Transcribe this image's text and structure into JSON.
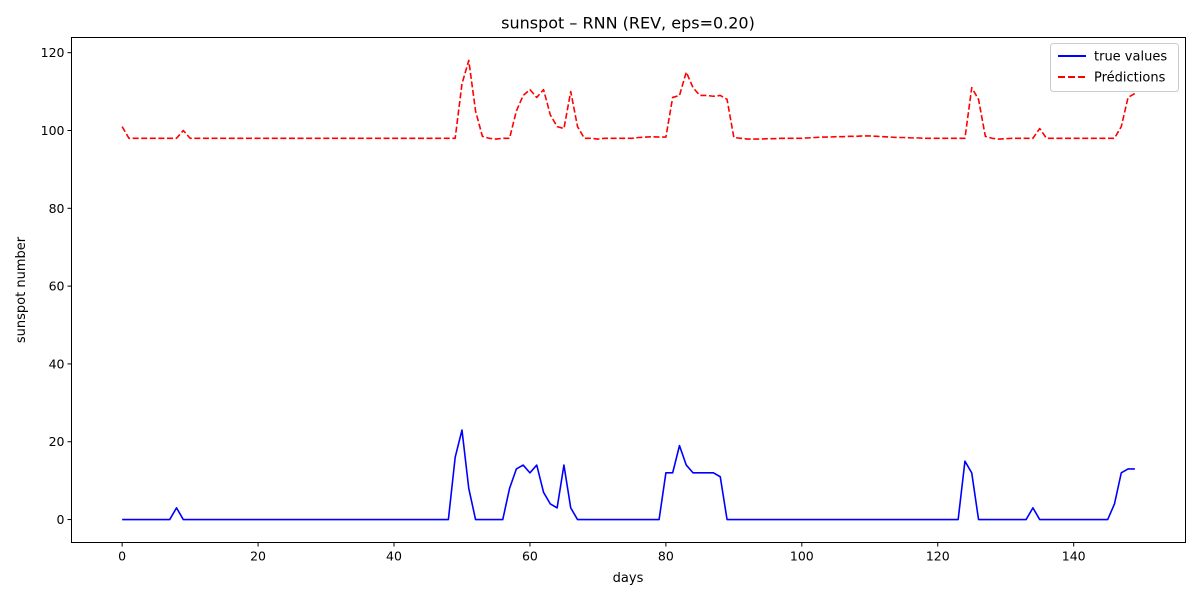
{
  "chart_data": {
    "type": "line",
    "title": "sunspot – RNN (REV, eps=0.20)",
    "xlabel": "days",
    "ylabel": "sunspot number",
    "xlim": [
      -7.45,
      156.45
    ],
    "ylim": [
      -5.9,
      123.9
    ],
    "xticks": [
      0,
      20,
      40,
      60,
      80,
      100,
      120,
      140
    ],
    "yticks": [
      0,
      20,
      40,
      60,
      80,
      100,
      120
    ],
    "grid": false,
    "legend_position": "top-right",
    "colors": {
      "true_values": "#0000ff",
      "predictions": "#ff0000"
    },
    "series": [
      {
        "name": "true values",
        "style": "solid",
        "color": "#0000ff",
        "x": [
          0,
          1,
          2,
          3,
          4,
          5,
          6,
          7,
          8,
          9,
          10,
          11,
          12,
          13,
          14,
          15,
          16,
          17,
          18,
          19,
          20,
          21,
          22,
          23,
          24,
          25,
          26,
          27,
          28,
          29,
          30,
          31,
          32,
          33,
          34,
          35,
          36,
          37,
          38,
          39,
          40,
          41,
          42,
          43,
          44,
          45,
          46,
          47,
          48,
          49,
          50,
          51,
          52,
          53,
          54,
          55,
          56,
          57,
          58,
          59,
          60,
          61,
          62,
          63,
          64,
          65,
          66,
          67,
          68,
          69,
          70,
          71,
          72,
          73,
          74,
          75,
          76,
          77,
          78,
          79,
          80,
          81,
          82,
          83,
          84,
          85,
          86,
          87,
          88,
          89,
          90,
          91,
          92,
          93,
          94,
          95,
          96,
          97,
          98,
          99,
          100,
          101,
          102,
          103,
          104,
          105,
          106,
          107,
          108,
          109,
          110,
          111,
          112,
          113,
          114,
          115,
          116,
          117,
          118,
          119,
          120,
          121,
          122,
          123,
          124,
          125,
          126,
          127,
          128,
          129,
          130,
          131,
          132,
          133,
          134,
          135,
          136,
          137,
          138,
          139,
          140,
          141,
          142,
          143,
          144,
          145,
          146,
          147,
          148,
          149
        ],
        "values": [
          0,
          0,
          0,
          0,
          0,
          0,
          0,
          0,
          3,
          0,
          0,
          0,
          0,
          0,
          0,
          0,
          0,
          0,
          0,
          0,
          0,
          0,
          0,
          0,
          0,
          0,
          0,
          0,
          0,
          0,
          0,
          0,
          0,
          0,
          0,
          0,
          0,
          0,
          0,
          0,
          0,
          0,
          0,
          0,
          0,
          0,
          0,
          0,
          0,
          16,
          23,
          8,
          0,
          0,
          0,
          0,
          0,
          8,
          13,
          14,
          12,
          14,
          7,
          4,
          3,
          14,
          3,
          0,
          0,
          0,
          0,
          0,
          0,
          0,
          0,
          0,
          0,
          0,
          0,
          0,
          12,
          12,
          19,
          14,
          12,
          12,
          12,
          12,
          11,
          0,
          0,
          0,
          0,
          0,
          0,
          0,
          0,
          0,
          0,
          0,
          0,
          0,
          0,
          0,
          0,
          0,
          0,
          0,
          0,
          0,
          0,
          0,
          0,
          0,
          0,
          0,
          0,
          0,
          0,
          0,
          0,
          0,
          0,
          0,
          15,
          12,
          0,
          0,
          0,
          0,
          0,
          0,
          0,
          0,
          3,
          0,
          0,
          0,
          0,
          0,
          0,
          0,
          0,
          0,
          0,
          0,
          4,
          12,
          13,
          13
        ]
      },
      {
        "name": "Prédictions",
        "style": "dashed",
        "color": "#ff0000",
        "x": [
          0,
          1,
          2,
          3,
          4,
          5,
          6,
          7,
          8,
          9,
          10,
          11,
          12,
          13,
          14,
          15,
          16,
          17,
          18,
          19,
          20,
          21,
          22,
          23,
          24,
          25,
          26,
          27,
          28,
          29,
          30,
          31,
          32,
          33,
          34,
          35,
          36,
          37,
          38,
          39,
          40,
          41,
          42,
          43,
          44,
          45,
          46,
          47,
          48,
          49,
          50,
          51,
          52,
          53,
          54,
          55,
          56,
          57,
          58,
          59,
          60,
          61,
          62,
          63,
          64,
          65,
          66,
          67,
          68,
          69,
          70,
          71,
          72,
          73,
          74,
          75,
          76,
          77,
          78,
          79,
          80,
          81,
          82,
          83,
          84,
          85,
          86,
          87,
          88,
          89,
          90,
          91,
          92,
          93,
          94,
          95,
          96,
          97,
          98,
          99,
          100,
          101,
          102,
          103,
          104,
          105,
          106,
          107,
          108,
          109,
          110,
          111,
          112,
          113,
          114,
          115,
          116,
          117,
          118,
          119,
          120,
          121,
          122,
          123,
          124,
          125,
          126,
          127,
          128,
          129,
          130,
          131,
          132,
          133,
          134,
          135,
          136,
          137,
          138,
          139,
          140,
          141,
          142,
          143,
          144,
          145,
          146,
          147,
          148,
          149
        ],
        "values": [
          101,
          98,
          98,
          98,
          98,
          98,
          98,
          98,
          98,
          100,
          98,
          98,
          98,
          98,
          98,
          98,
          98,
          98,
          98,
          98,
          98,
          98,
          98,
          98,
          98,
          98,
          98,
          98,
          98,
          98,
          98,
          98,
          98,
          98,
          98,
          98,
          98,
          98,
          98,
          98,
          98,
          98,
          98,
          98,
          98,
          98,
          98,
          98,
          98,
          98,
          112,
          118,
          105,
          98.5,
          98,
          97.8,
          98,
          98,
          105,
          109,
          110.5,
          108.5,
          110.5,
          104,
          101,
          100.5,
          110,
          101,
          98,
          98,
          97.8,
          98,
          98,
          98,
          98,
          98,
          98.2,
          98.3,
          98.4,
          98.3,
          98.3,
          108.5,
          109,
          115,
          111,
          109,
          109,
          108.8,
          109,
          108,
          98.2,
          98,
          97.8,
          97.8,
          97.8,
          97.9,
          97.9,
          98,
          98,
          98,
          98,
          98.1,
          98.2,
          98.3,
          98.3,
          98.4,
          98.4,
          98.5,
          98.5,
          98.6,
          98.6,
          98.5,
          98.4,
          98.3,
          98.2,
          98.2,
          98.1,
          98.1,
          98,
          98,
          98,
          98,
          98,
          98,
          98,
          111,
          108,
          98.5,
          98,
          97.8,
          97.9,
          98,
          98,
          98,
          98,
          100.5,
          98,
          98,
          98,
          98,
          98,
          98,
          98,
          98,
          98,
          98,
          98,
          101,
          108.5,
          109.5
        ]
      }
    ]
  }
}
